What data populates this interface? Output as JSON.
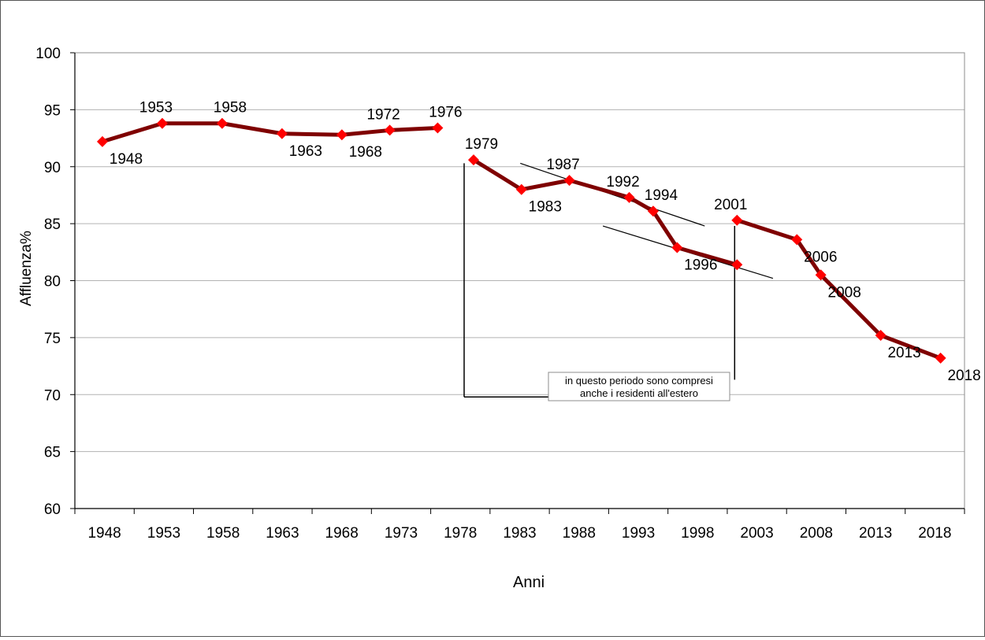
{
  "chart_data": {
    "type": "line",
    "title": "",
    "xlabel": "Anni",
    "ylabel": "Affluenza%",
    "x_ticks": [
      "1948",
      "1953",
      "1958",
      "1963",
      "1968",
      "1973",
      "1978",
      "1983",
      "1988",
      "1993",
      "1998",
      "2003",
      "2008",
      "2013",
      "2018"
    ],
    "ylim": [
      60,
      100
    ],
    "y_ticks": [
      60,
      65,
      70,
      75,
      80,
      85,
      90,
      95,
      100
    ],
    "grid": true,
    "legend": "none",
    "series": [
      {
        "points": [
          {
            "x": 1948,
            "y": 92.2,
            "label": "1948",
            "lpos": "below"
          },
          {
            "x": 1953,
            "y": 93.8,
            "label": "1953",
            "lpos": "above"
          },
          {
            "x": 1958,
            "y": 93.8,
            "label": "1958",
            "lpos": "above-right"
          },
          {
            "x": 1963,
            "y": 92.9,
            "label": "1963",
            "lpos": "below"
          },
          {
            "x": 1968,
            "y": 92.8,
            "label": "1968",
            "lpos": "below"
          },
          {
            "x": 1972,
            "y": 93.2,
            "label": "1972",
            "lpos": "above"
          },
          {
            "x": 1976,
            "y": 93.4,
            "label": "1976",
            "lpos": "above-right"
          }
        ]
      },
      {
        "points": [
          {
            "x": 1979,
            "y": 90.6,
            "label": "1979",
            "lpos": "above-right"
          },
          {
            "x": 1983,
            "y": 88.0,
            "label": "1983",
            "lpos": "below"
          },
          {
            "x": 1987,
            "y": 88.8,
            "label": "1987",
            "lpos": "above"
          },
          {
            "x": 1992,
            "y": 87.3,
            "label": "1992",
            "lpos": "above"
          },
          {
            "x": 1994,
            "y": 86.1,
            "label": "1994",
            "lpos": "above-right"
          },
          {
            "x": 1996,
            "y": 82.9,
            "label": "1996",
            "lpos": "below"
          },
          {
            "x": 2001,
            "y": 81.4,
            "label": "",
            "lpos": "none"
          }
        ]
      },
      {
        "points": [
          {
            "x": 2001,
            "y": 85.3,
            "label": "2001",
            "lpos": "above"
          },
          {
            "x": 2006,
            "y": 83.6,
            "label": "2006",
            "lpos": "below"
          },
          {
            "x": 2008,
            "y": 80.5,
            "label": "2008",
            "lpos": "below"
          },
          {
            "x": 2013,
            "y": 75.2,
            "label": "2013",
            "lpos": "below"
          },
          {
            "x": 2018,
            "y": 73.2,
            "label": "2018",
            "lpos": "below"
          }
        ]
      }
    ],
    "annotation": {
      "lines": [
        "in questo periodo sono compresi",
        "anche i residenti all'estero"
      ],
      "x_range": [
        1979,
        2001
      ]
    },
    "colors": {
      "line": "#7f0000",
      "marker": "#ff0000",
      "grid": "#b3b3b3"
    }
  }
}
